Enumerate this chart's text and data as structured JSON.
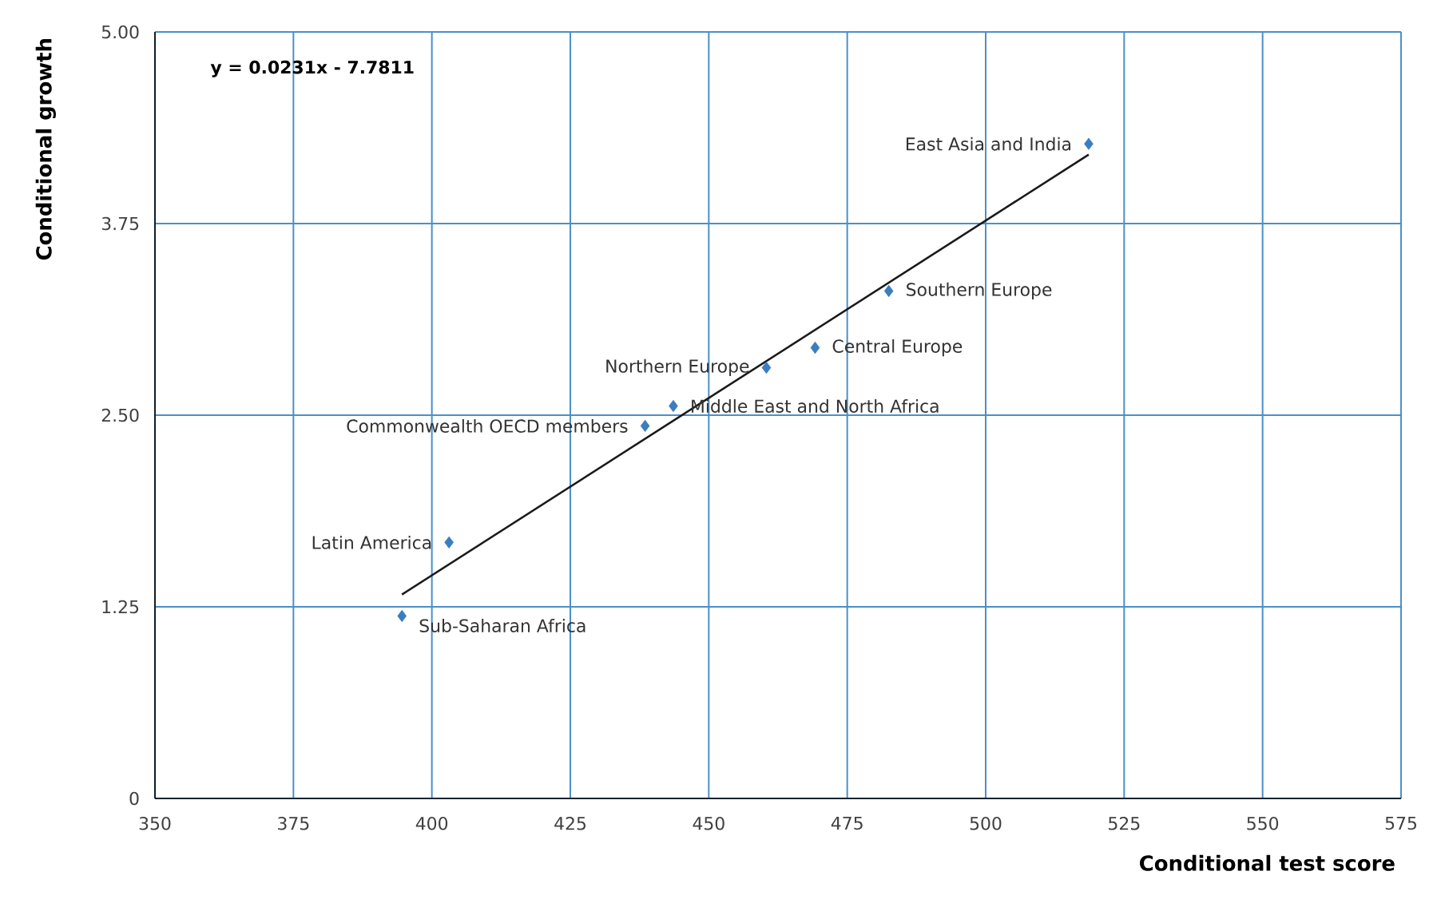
{
  "chart_data": {
    "type": "scatter",
    "xlabel": "Conditional test score",
    "ylabel": "Conditional growth",
    "series": [
      {
        "color": "#3a7dc0",
        "marker": "diamond",
        "x": [
          518.6,
          482.5,
          469.2,
          460.4,
          443.6,
          438.5,
          403.1,
          394.6
        ],
        "values": [
          4.27,
          3.31,
          2.94,
          2.81,
          2.56,
          2.43,
          1.67,
          1.19
        ]
      },
      {
        "type": "line",
        "color": "#1a1a1a",
        "x": [
          394.6,
          518.6
        ],
        "values": [
          1.33,
          4.2
        ]
      }
    ],
    "annotations": [
      "y = 0.0231x - 7.7811",
      {
        "text": "East Asia and India",
        "x": 518.6,
        "y": 4.27
      },
      {
        "text": "Southern Europe",
        "x": 482.5,
        "y": 3.31
      },
      {
        "text": "Central Europe",
        "x": 469.2,
        "y": 2.94
      },
      {
        "text": "Northern Europe",
        "x": 460.4,
        "y": 2.81
      },
      {
        "text": "Middle East and North Africa",
        "x": 443.6,
        "y": 2.56
      },
      {
        "text": "Commonwealth OECD members",
        "x": 438.5,
        "y": 2.43
      },
      {
        "text": "Latin America",
        "x": 403.1,
        "y": 1.67
      },
      {
        "text": "Sub-Saharan Africa",
        "x": 394.6,
        "y": 1.19
      }
    ],
    "xlim": [
      350,
      575
    ],
    "xticks": [
      350,
      375,
      400,
      425,
      450,
      475,
      500,
      525,
      550,
      575
    ],
    "ylim": [
      0,
      5
    ],
    "yticks": [
      0,
      {
        "value": 1.25,
        "label": "1.25"
      },
      {
        "value": 2.5,
        "label": "2.50"
      },
      {
        "value": 3.75,
        "label": "3.75"
      },
      {
        "value": 5,
        "label": "5.00"
      }
    ],
    "grid": true
  }
}
